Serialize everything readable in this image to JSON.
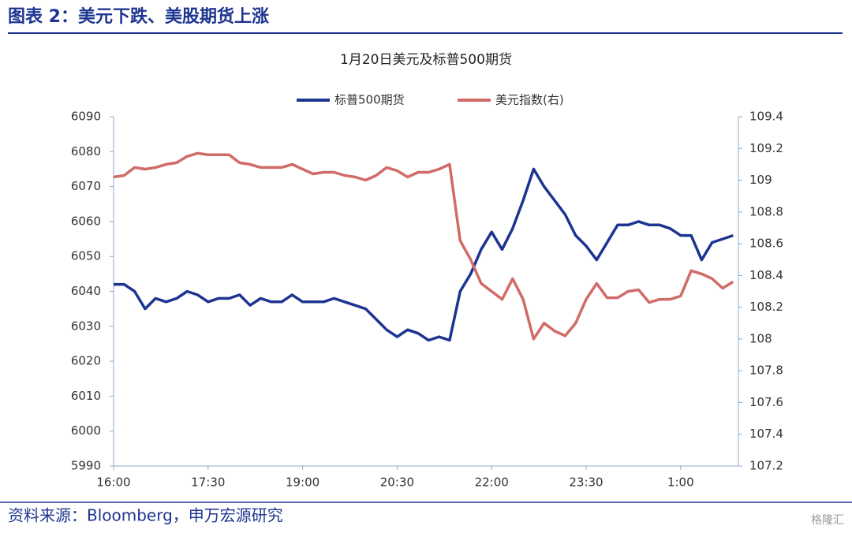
{
  "header": {
    "title": "图表 2：美元下跌、美股期货上涨"
  },
  "chart_data": {
    "type": "line",
    "title": "1月20日美元及标普500期货",
    "categories": [
      "16:00",
      null,
      null,
      null,
      null,
      null,
      null,
      null,
      null,
      "17:30",
      null,
      null,
      null,
      null,
      null,
      null,
      null,
      null,
      "19:00",
      null,
      null,
      null,
      null,
      null,
      null,
      null,
      null,
      "20:30",
      null,
      null,
      null,
      null,
      null,
      null,
      null,
      null,
      "22:00",
      null,
      null,
      null,
      null,
      null,
      null,
      null,
      null,
      "23:30",
      null,
      null,
      null,
      null,
      null,
      null,
      null,
      null,
      "1:00",
      null,
      null,
      null,
      null,
      null
    ],
    "series": [
      {
        "name": "标普500期货",
        "color": "#1d3591",
        "axis": "y",
        "values": [
          6042,
          6042,
          6040,
          6035,
          6038,
          6037,
          6038,
          6040,
          6039,
          6037,
          6038,
          6038,
          6039,
          6036,
          6038,
          6037,
          6037,
          6039,
          6037,
          6037,
          6037,
          6038,
          6037,
          6036,
          6035,
          6032,
          6029,
          6027,
          6029,
          6028,
          6026,
          6027,
          6026,
          6040,
          6045,
          6052,
          6057,
          6052,
          6058,
          6066,
          6075,
          6070,
          6066,
          6062,
          6056,
          6053,
          6049,
          6054,
          6059,
          6059,
          6060,
          6059,
          6059,
          6058,
          6056,
          6056,
          6049,
          6054,
          6055,
          6056
        ]
      },
      {
        "name": "美元指数(右)",
        "color": "#d06b68",
        "axis": "y2",
        "values": [
          109.02,
          109.03,
          109.08,
          109.07,
          109.08,
          109.1,
          109.11,
          109.15,
          109.17,
          109.16,
          109.16,
          109.16,
          109.11,
          109.1,
          109.08,
          109.08,
          109.08,
          109.1,
          109.07,
          109.04,
          109.05,
          109.05,
          109.03,
          109.02,
          109.0,
          109.03,
          109.08,
          109.06,
          109.02,
          109.05,
          109.05,
          109.07,
          109.1,
          108.62,
          108.5,
          108.35,
          108.3,
          108.25,
          108.38,
          108.25,
          108.0,
          108.1,
          108.05,
          108.02,
          108.1,
          108.25,
          108.35,
          108.26,
          108.26,
          108.3,
          108.31,
          108.23,
          108.25,
          108.25,
          108.27,
          108.43,
          108.41,
          108.38,
          108.32,
          108.36
        ]
      }
    ],
    "ylim": [
      5990,
      6090
    ],
    "yticks": [
      5990,
      6000,
      6010,
      6020,
      6030,
      6040,
      6050,
      6060,
      6070,
      6080,
      6090
    ],
    "y2lim": [
      107.2,
      109.4
    ],
    "y2ticks": [
      107.2,
      107.4,
      107.6,
      107.8,
      108,
      108.2,
      108.4,
      108.6,
      108.8,
      109,
      109.2,
      109.4
    ],
    "grid": false,
    "legend": "top"
  },
  "footer": {
    "source": "资料来源：Bloomberg，申万宏源研究",
    "watermark": "格隆汇"
  }
}
